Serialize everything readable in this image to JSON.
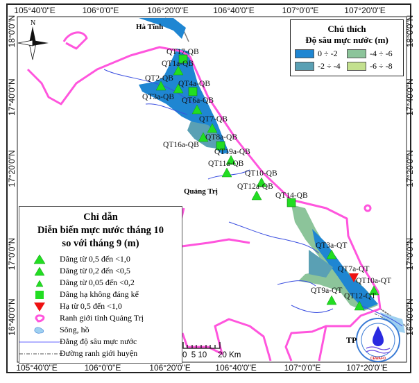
{
  "axes": {
    "top": [
      "105°40'0\"E",
      "106°0'0\"E",
      "106°20'0\"E",
      "106°40'0\"E",
      "107°0'0\"E",
      "107°20'0\"E"
    ],
    "bottom": [
      "105°40'0\"E",
      "106°0'0\"E",
      "106°20'0\"E",
      "106°40'0\"E",
      "107°0'0\"E",
      "107°20'0\"E"
    ],
    "left": [
      "18°0'0\"N",
      "17°40'0\"N",
      "17°20'0\"N",
      "17°0'0\"N",
      "16°40'0\"N"
    ],
    "right": [
      "18°0'0\"N",
      "17°40'0\"N",
      "17°20'0\"N",
      "17°0'0\"N",
      "16°40'0\"N"
    ]
  },
  "places": {
    "ha_tinh": "Hà Tĩnh",
    "quang_tri": "Quảng Trị",
    "tp": "TP"
  },
  "north_label": "N",
  "depth_legend": {
    "title1": "Chú thích",
    "title2": "Độ sâu mực nước (m)",
    "classes": [
      {
        "label": "0 ÷ -2",
        "color": "#1f86d2"
      },
      {
        "label": "-4 ÷ -6",
        "color": "#8cc49a"
      },
      {
        "label": "-2 ÷ -4",
        "color": "#5aa0b4"
      },
      {
        "label": "-6 ÷ -8",
        "color": "#c3e08e"
      }
    ]
  },
  "main_legend": {
    "title1": "Chỉ dẫn",
    "title2": "Diễn biến mực nước tháng 10",
    "title3": "so với tháng 9 (m)",
    "items": [
      {
        "label": "Dâng từ 0,5 đến <1,0",
        "symbol": "triangle-up-large",
        "color": "#22dd22"
      },
      {
        "label": "Dâng từ 0,2 đến <0,5",
        "symbol": "triangle-up-medium",
        "color": "#22dd22"
      },
      {
        "label": "Dâng từ 0,05 đến <0,2",
        "symbol": "triangle-up-small",
        "color": "#22dd22"
      },
      {
        "label": "Dâng hạ không đáng kể",
        "symbol": "square",
        "color": "#22dd22"
      },
      {
        "label": "Hạ từ 0,5 đến <1,0",
        "symbol": "triangle-down",
        "color": "#ee1111"
      },
      {
        "label": "Ranh giới tỉnh Quảng Trị",
        "symbol": "province-boundary",
        "color": "#ff55dd"
      },
      {
        "label": "Sông, hồ",
        "symbol": "river-lake",
        "color": "#9ed0f0"
      },
      {
        "label": "Đẳng độ sâu mực nước",
        "symbol": "isoline",
        "color": "#6666ff"
      },
      {
        "label": "Đường ranh giới huyện",
        "symbol": "district-boundary",
        "color": "#555555"
      }
    ]
  },
  "stations": [
    {
      "name": "QT17-QB",
      "symbol": "square"
    },
    {
      "name": "QT1a-QB",
      "symbol": "triangle-up"
    },
    {
      "name": "QT2-QB",
      "symbol": "triangle-up"
    },
    {
      "name": "QT4a-QB",
      "symbol": "triangle-up"
    },
    {
      "name": "QT3a-QB",
      "symbol": "square"
    },
    {
      "name": "QT6a-QB",
      "symbol": "triangle-up"
    },
    {
      "name": "QT7-QB",
      "symbol": "triangle-up"
    },
    {
      "name": "QT8a-QB",
      "symbol": "triangle-up"
    },
    {
      "name": "QT16a-QB",
      "symbol": "square"
    },
    {
      "name": "QT19a-QB",
      "symbol": "triangle-up"
    },
    {
      "name": "QT11a-QB",
      "symbol": "triangle-up"
    },
    {
      "name": "QT10-QB",
      "symbol": "triangle-up"
    },
    {
      "name": "QT12a-QB",
      "symbol": "triangle-up"
    },
    {
      "name": "QT14-QB",
      "symbol": "square"
    },
    {
      "name": "QT3a-QT",
      "symbol": "triangle-up"
    },
    {
      "name": "QT7a-QT",
      "symbol": "triangle-down"
    },
    {
      "name": "QT10a-QT",
      "symbol": "triangle-up"
    },
    {
      "name": "QT9a-QT",
      "symbol": "triangle-up"
    },
    {
      "name": "QT12-QT",
      "symbol": "triangle-up"
    }
  ],
  "scale_bar": {
    "text": "0  5 10     20 Km"
  },
  "logo": {
    "text": "CEWAFO"
  }
}
